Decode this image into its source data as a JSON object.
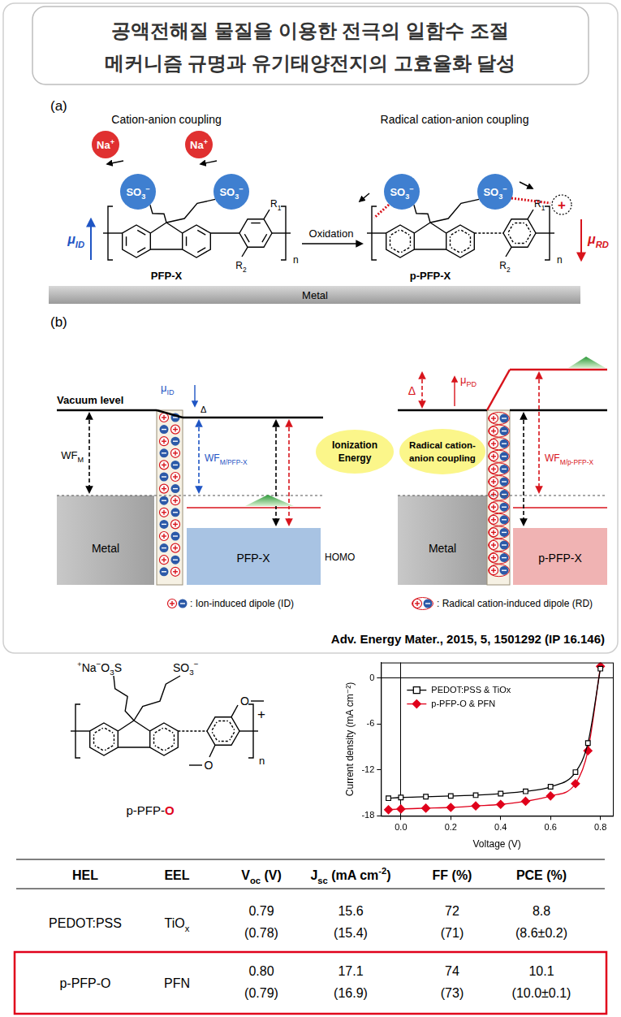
{
  "header": {
    "title": [
      "공액전해질 물질을 이용한 전극의 일함수 조절",
      "메커니즘 규명과 유기태양전지의 고효율화 달성"
    ]
  },
  "panel_a": {
    "label": "(a)",
    "left_title": "Cation-anion coupling",
    "right_title": "Radical cation-anion coupling",
    "cation": [
      "Na",
      {
        "sup": "+"
      }
    ],
    "anion": [
      "SO",
      {
        "sub": "3"
      },
      {
        "sup": "−"
      }
    ],
    "left_dipole": [
      "μ",
      {
        "sub": "ID"
      }
    ],
    "right_dipole": [
      "μ",
      {
        "sub": "RD"
      }
    ],
    "left_name": "PFP-X",
    "right_name": "p-PFP-X",
    "reaction": "Oxidation",
    "left_substituents": [
      [
        "R",
        {
          "sub": "1"
        }
      ],
      [
        "R",
        {
          "sub": "2"
        }
      ]
    ],
    "right_substituents": [
      [
        "R",
        {
          "sub": "1"
        }
      ],
      [
        "R",
        {
          "sub": "2"
        }
      ]
    ],
    "repeat": "n",
    "radical": "+",
    "substrate": "Metal"
  },
  "panel_b": {
    "label": "(b)",
    "vacuum_level": "Vacuum level",
    "left_dipole": [
      "μ",
      {
        "sub": "ID"
      }
    ],
    "right_dipole": [
      "μ",
      {
        "sub": "PD"
      }
    ],
    "offset": "Δ",
    "metal_wf": [
      "WF",
      {
        "sub": "M"
      }
    ],
    "left_wf": [
      "WF",
      {
        "sub": "M/PFP-X"
      }
    ],
    "right_wf": [
      "WF",
      {
        "sub": "M/p-PFP-X"
      }
    ],
    "left_bubble": [
      "Ionization",
      "Energy"
    ],
    "right_bubble": [
      "Radical cation-",
      "anion coupling"
    ],
    "homo": "HOMO",
    "metal": "Metal",
    "left_layer": "PFP-X",
    "right_layer": "p-PFP-X",
    "left_key": ": Ion-induced dipole (ID)",
    "right_key": ": Radical cation-induced dipole (RD)"
  },
  "citation": "Adv. Energy Mater., 2015, 5, 1501292 (IP 16.146)",
  "structure": {
    "left_group": [
      {
        "sup": "+"
      },
      "Na",
      {
        "sup": "−"
      },
      "O",
      {
        "sub": "3"
      },
      "S"
    ],
    "right_group": [
      "SO",
      {
        "sub": "3"
      },
      {
        "sup": "−"
      }
    ],
    "substituents": [
      "O",
      "O"
    ],
    "charge": "+",
    "repeat": "n",
    "name": "p-PFP-O"
  },
  "chart_data": {
    "type": "line",
    "x_label": "Voltage (V)",
    "y_label": "Current density (mA cm⁻²)",
    "xlim": [
      -0.08,
      0.85
    ],
    "xticks": [
      {
        "value": 0,
        "label": "0.0"
      },
      0.2,
      0.4,
      0.6,
      0.8
    ],
    "ylim": [
      -18,
      2
    ],
    "yticks": [
      -18,
      -12,
      -6,
      0
    ],
    "grid": false,
    "legend": "top-left",
    "x": [
      -0.05,
      0,
      0.1,
      0.2,
      0.3,
      0.4,
      0.5,
      0.6,
      0.7,
      0.75,
      0.8
    ],
    "series": [
      {
        "name": "PEDOT:PSS & TiOx",
        "color": "#000000",
        "marker": "open-square",
        "values": [
          -15.7,
          -15.6,
          -15.5,
          -15.4,
          -15.3,
          -15.1,
          -14.8,
          -14.2,
          -12.3,
          -8.5,
          1.2
        ]
      },
      {
        "name": "p-PFP-O & PFN",
        "color": "#e0001b",
        "marker": "diamond",
        "values": [
          -17.2,
          -17.1,
          -17.0,
          -16.9,
          -16.7,
          -16.5,
          -16.1,
          -15.4,
          -13.8,
          -9.5,
          1.5
        ]
      }
    ]
  },
  "table": {
    "columns": [
      [
        "HEL"
      ],
      [
        "EEL"
      ],
      [
        "V",
        {
          "sub": "oc"
        },
        " (V)"
      ],
      [
        "J",
        {
          "sub": "sc"
        },
        " (mA cm",
        {
          "sup": "-2"
        },
        ")"
      ],
      [
        "FF (%)"
      ],
      [
        "PCE (%)"
      ]
    ],
    "rows": [
      {
        "cells": [
          [
            [
              "PEDOT:PSS"
            ]
          ],
          [
            [
              "TiO",
              {
                "sub": "x"
              }
            ]
          ],
          [
            [
              "0.79"
            ],
            [
              "(0.78)"
            ]
          ],
          [
            [
              "15.6"
            ],
            [
              "(15.4)"
            ]
          ],
          [
            [
              "72"
            ],
            [
              "(71)"
            ]
          ],
          [
            [
              "8.8"
            ],
            [
              "(8.6±0.2)"
            ]
          ]
        ]
      },
      {
        "highlight": true,
        "cells": [
          [
            [
              "p-PFP-O"
            ]
          ],
          [
            [
              "PFN"
            ]
          ],
          [
            [
              "0.80"
            ],
            [
              "(0.79)"
            ]
          ],
          [
            [
              "17.1"
            ],
            [
              "(16.9)"
            ]
          ],
          [
            [
              "74"
            ],
            [
              "(73)"
            ]
          ],
          [
            [
              "10.1"
            ],
            [
              "(10.0±0.1)"
            ]
          ]
        ]
      }
    ]
  }
}
